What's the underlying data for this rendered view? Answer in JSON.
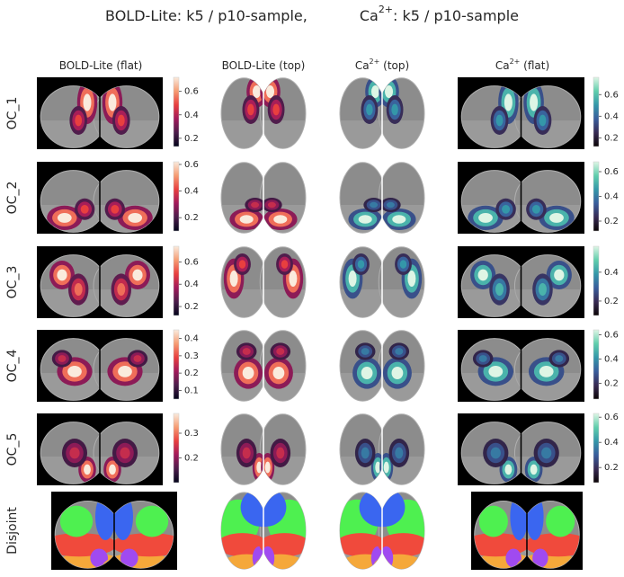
{
  "title": {
    "text": "BOLD-Lite:   k5 / p10-sample,",
    "ca": "Ca",
    "sup": "2+",
    "rest": ":   k5 / p10-sample"
  },
  "columns": [
    {
      "text": "BOLD-Lite (flat)"
    },
    {
      "text": "BOLD-Lite (top)"
    },
    {
      "text": "Ca",
      "sup": "2+",
      "rest": " (top)"
    },
    {
      "text": "Ca",
      "sup": "2+",
      "rest": " (flat)"
    }
  ],
  "rows": [
    {
      "label": "OC_1",
      "bold_colorbar": {
        "lim": [
          0.13,
          0.72
        ],
        "ticks": [
          0.2,
          0.4,
          0.6
        ]
      },
      "ca_colorbar": {
        "lim": [
          0.12,
          0.76
        ],
        "ticks": [
          0.2,
          0.4,
          0.6
        ]
      }
    },
    {
      "label": "OC_2",
      "bold_colorbar": {
        "lim": [
          0.1,
          0.62
        ],
        "ticks": [
          0.2,
          0.4,
          0.6
        ]
      },
      "ca_colorbar": {
        "lim": [
          0.12,
          0.68
        ],
        "ticks": [
          0.2,
          0.4,
          0.6
        ]
      }
    },
    {
      "label": "OC_3",
      "bold_colorbar": {
        "lim": [
          0.12,
          0.74
        ],
        "ticks": [
          0.2,
          0.4,
          0.6
        ]
      },
      "ca_colorbar": {
        "lim": [
          0.1,
          0.58
        ],
        "ticks": [
          0.2,
          0.4
        ]
      }
    },
    {
      "label": "OC_4",
      "bold_colorbar": {
        "lim": [
          0.05,
          0.45
        ],
        "ticks": [
          0.1,
          0.2,
          0.3,
          0.4
        ]
      },
      "ca_colorbar": {
        "lim": [
          0.07,
          0.64
        ],
        "ticks": [
          0.2,
          0.4,
          0.6
        ]
      }
    },
    {
      "label": "OC_5",
      "bold_colorbar": {
        "lim": [
          0.1,
          0.38
        ],
        "ticks": [
          0.2,
          0.3
        ]
      },
      "ca_colorbar": {
        "lim": [
          0.08,
          0.63
        ],
        "ticks": [
          0.2,
          0.4,
          0.6
        ]
      }
    },
    {
      "label": "Disjoint"
    }
  ]
}
